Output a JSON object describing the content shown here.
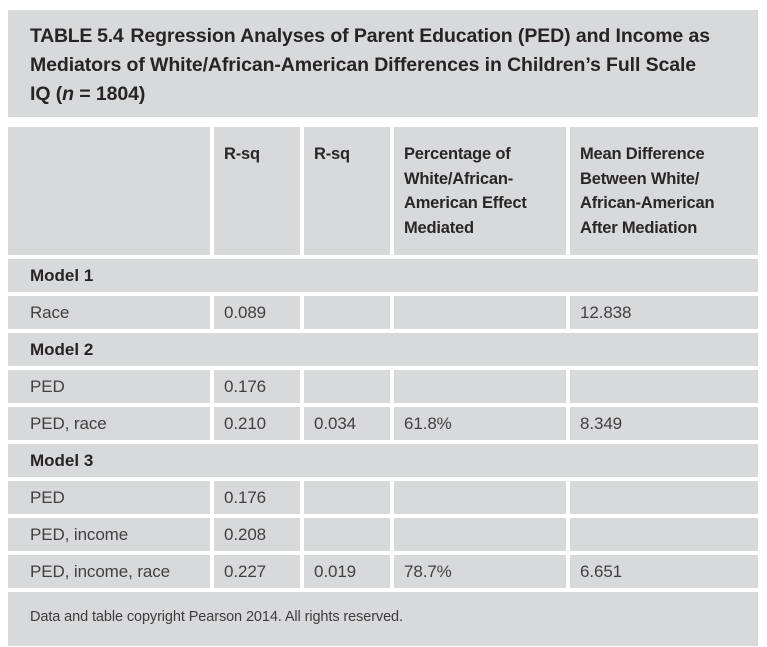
{
  "colors": {
    "page_background": "#ffffff",
    "block_background": "#d8d9da",
    "heading_text": "#282425",
    "body_text": "#433f40"
  },
  "title": {
    "label": "TABLE 5.4",
    "body": "Regression Analyses of Parent Education (PED) and Income as\nMediators of White/African-American Differences in Children’s Full Scale\nIQ (",
    "n_symbol": "n",
    "tail": " = 1804)"
  },
  "table": {
    "columns": [
      {
        "key": "label",
        "header": ""
      },
      {
        "key": "rsq1",
        "header": "R-sq"
      },
      {
        "key": "rsq2",
        "header": "R-sq"
      },
      {
        "key": "pct",
        "header": "Percentage of\nWhite/African-\nAmerican Effect\nMediated"
      },
      {
        "key": "mean",
        "header": "Mean Difference\nBetween White/\nAfrican-American\nAfter Mediation"
      }
    ],
    "rows": [
      {
        "type": "section",
        "label": "Model 1"
      },
      {
        "type": "data",
        "label": "Race",
        "rsq1": "0.089",
        "rsq2": "",
        "pct": "",
        "mean": "12.838"
      },
      {
        "type": "section",
        "label": "Model 2"
      },
      {
        "type": "data",
        "label": "PED",
        "rsq1": "0.176",
        "rsq2": "",
        "pct": "",
        "mean": ""
      },
      {
        "type": "data",
        "label": "PED, race",
        "rsq1": "0.210",
        "rsq2": "0.034",
        "pct": "61.8%",
        "mean": "8.349"
      },
      {
        "type": "section",
        "label": "Model 3"
      },
      {
        "type": "data",
        "label": "PED",
        "rsq1": "0.176",
        "rsq2": "",
        "pct": "",
        "mean": ""
      },
      {
        "type": "data",
        "label": "PED, income",
        "rsq1": "0.208",
        "rsq2": "",
        "pct": "",
        "mean": ""
      },
      {
        "type": "data",
        "label": "PED, income, race",
        "rsq1": "0.227",
        "rsq2": "0.019",
        "pct": "78.7%",
        "mean": "6.651"
      }
    ],
    "footer": "Data and table copyright Pearson 2014. All rights reserved."
  }
}
